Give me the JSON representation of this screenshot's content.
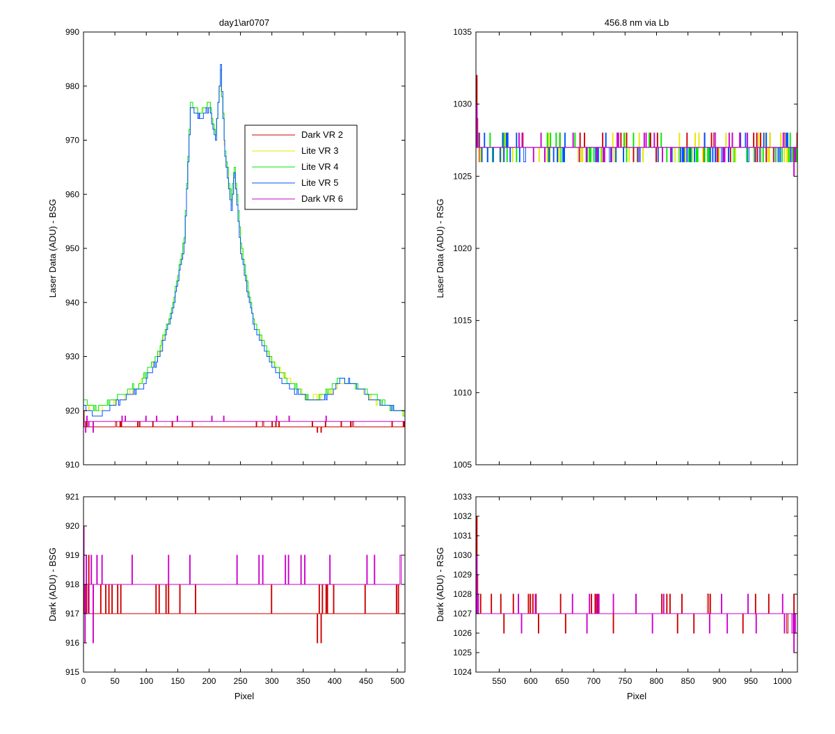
{
  "figure": {
    "background": "#ffffff",
    "xlabel": "Pixel"
  },
  "legend": {
    "placement": "inside top-left panel, upper-right area",
    "entries": [
      {
        "label": "Dark VR 2",
        "color": "#cc0000"
      },
      {
        "label": "Lite VR 3",
        "color": "#e6e600"
      },
      {
        "label": "Lite VR 4",
        "color": "#00e600"
      },
      {
        "label": "Lite VR 5",
        "color": "#0050ff"
      },
      {
        "label": "Dark VR 6",
        "color": "#cc00cc"
      }
    ]
  },
  "chart_data": [
    {
      "id": "bsg_laser",
      "type": "line",
      "title": "day1\\ar0707",
      "xlabel": "",
      "ylabel": "Laser Data (ADU) - BSG",
      "xlim": [
        0,
        512
      ],
      "ylim": [
        910,
        990
      ],
      "xticks": [
        0,
        50,
        100,
        150,
        200,
        250,
        300,
        350,
        400,
        450,
        500
      ],
      "xtick_labels_shown": false,
      "yticks": [
        910,
        920,
        930,
        940,
        950,
        960,
        970,
        980,
        990
      ],
      "grid": false,
      "series": [
        {
          "name": "Dark VR 2",
          "color": "#cc0000",
          "baseline": 917,
          "x": [
            0,
            5,
            10,
            15,
            20,
            370,
            372,
            375,
            378,
            380,
            383,
            385,
            512
          ],
          "y": [
            920,
            918,
            917,
            917,
            917,
            917,
            916,
            917,
            916,
            917,
            917,
            918,
            918
          ]
        },
        {
          "name": "Lite VR 3",
          "color": "#e6e600",
          "x": [
            0,
            20,
            60,
            90,
            120,
            140,
            160,
            170,
            185,
            200,
            210,
            218,
            225,
            235,
            240,
            250,
            270,
            300,
            330,
            360,
            380,
            400,
            410,
            425,
            440,
            460,
            480,
            500,
            512
          ],
          "y": [
            921,
            920,
            922,
            925,
            931,
            938,
            951,
            976,
            975,
            977,
            970,
            983,
            967,
            958,
            964,
            950,
            937,
            929,
            925,
            922,
            923,
            924,
            925,
            925,
            924,
            922,
            921,
            920,
            919
          ]
        },
        {
          "name": "Lite VR 4",
          "color": "#00e600",
          "x": [
            0,
            20,
            60,
            90,
            120,
            140,
            160,
            170,
            185,
            200,
            210,
            218,
            225,
            235,
            240,
            250,
            270,
            300,
            330,
            360,
            380,
            400,
            410,
            425,
            440,
            460,
            480,
            500,
            512
          ],
          "y": [
            922,
            920,
            923,
            925,
            931,
            939,
            952,
            977,
            975,
            977,
            971,
            983,
            968,
            959,
            965,
            951,
            937,
            929,
            925,
            922,
            923,
            925,
            926,
            925,
            924,
            923,
            921,
            920,
            919
          ]
        },
        {
          "name": "Lite VR 5",
          "color": "#0050ff",
          "x": [
            0,
            20,
            60,
            90,
            120,
            140,
            160,
            170,
            185,
            200,
            210,
            218,
            225,
            235,
            240,
            250,
            270,
            300,
            330,
            360,
            380,
            400,
            410,
            425,
            440,
            460,
            480,
            500,
            512
          ],
          "y": [
            921,
            919,
            922,
            924,
            930,
            938,
            951,
            976,
            974,
            976,
            970,
            984,
            967,
            957,
            964,
            949,
            936,
            928,
            924,
            922,
            922,
            924,
            926,
            925,
            924,
            922,
            921,
            920,
            920
          ]
        },
        {
          "name": "Dark VR 6",
          "color": "#cc00cc",
          "baseline": 918,
          "x": [
            0,
            3,
            5,
            8,
            12,
            15,
            20,
            512
          ],
          "y": [
            918,
            916,
            919,
            917,
            918,
            916,
            918,
            918
          ]
        }
      ]
    },
    {
      "id": "rsg_laser",
      "type": "line",
      "title": "456.8 nm via Lb",
      "xlabel": "",
      "ylabel": "Laser Data (ADU) - RSG",
      "xlim": [
        513,
        1024
      ],
      "ylim": [
        1005,
        1035
      ],
      "xticks": [
        550,
        600,
        650,
        700,
        750,
        800,
        850,
        900,
        950,
        1000
      ],
      "xtick_labels_shown": false,
      "yticks": [
        1005,
        1010,
        1015,
        1020,
        1025,
        1030,
        1035
      ],
      "grid": false,
      "series": [
        {
          "name": "Dark VR 2",
          "color": "#cc0000",
          "baseline": 1027,
          "x": [
            513,
            514,
            515,
            517,
            520,
            1024
          ],
          "y": [
            1027,
            1032,
            1029,
            1027,
            1027,
            1027
          ]
        },
        {
          "name": "Lite VR 3",
          "color": "#e6e600",
          "baseline": 1027,
          "x": [
            513,
            1024
          ],
          "y": [
            1027,
            1027
          ]
        },
        {
          "name": "Lite VR 4",
          "color": "#00e600",
          "baseline": 1027,
          "x": [
            513,
            1024
          ],
          "y": [
            1027,
            1027
          ]
        },
        {
          "name": "Lite VR 5",
          "color": "#0050ff",
          "baseline": 1027,
          "x": [
            513,
            1024
          ],
          "y": [
            1027,
            1027
          ]
        },
        {
          "name": "Dark VR 6",
          "color": "#cc00cc",
          "baseline": 1027,
          "x": [
            513,
            514,
            516,
            518,
            1015,
            1018,
            1020,
            1024
          ],
          "y": [
            1027,
            1030,
            1027,
            1028,
            1027,
            1025,
            1026,
            1027
          ]
        }
      ]
    },
    {
      "id": "bsg_dark",
      "type": "line",
      "title": "",
      "xlabel": "Pixel",
      "ylabel": "Dark (ADU) - BSG",
      "xlim": [
        0,
        512
      ],
      "ylim": [
        915,
        921
      ],
      "xticks": [
        0,
        50,
        100,
        150,
        200,
        250,
        300,
        350,
        400,
        450,
        500
      ],
      "yticks": [
        915,
        916,
        917,
        918,
        919,
        920,
        921
      ],
      "grid": false,
      "series": [
        {
          "name": "Dark VR 2",
          "color": "#cc0000",
          "baseline": 917,
          "x": [
            0,
            2,
            4,
            6,
            8,
            12,
            15,
            20,
            370,
            372,
            375,
            378,
            380,
            383,
            386,
            512
          ],
          "y": [
            920,
            917,
            918,
            917,
            919,
            917,
            918,
            917,
            917,
            916,
            918,
            916,
            918,
            917,
            918,
            918
          ]
        },
        {
          "name": "Dark VR 6",
          "color": "#cc00cc",
          "baseline": 918,
          "x": [
            0,
            2,
            4,
            7,
            10,
            12,
            15,
            18,
            22,
            512
          ],
          "y": [
            920,
            916,
            919,
            917,
            918,
            919,
            916,
            918,
            918,
            918
          ]
        }
      ]
    },
    {
      "id": "rsg_dark",
      "type": "line",
      "title": "",
      "xlabel": "Pixel",
      "ylabel": "Dark (ADU) - RSG",
      "xlim": [
        513,
        1024
      ],
      "ylim": [
        1024,
        1033
      ],
      "xticks": [
        550,
        600,
        650,
        700,
        750,
        800,
        850,
        900,
        950,
        1000
      ],
      "yticks": [
        1024,
        1025,
        1026,
        1027,
        1028,
        1029,
        1030,
        1031,
        1032,
        1033
      ],
      "grid": false,
      "series": [
        {
          "name": "Dark VR 2",
          "color": "#cc0000",
          "baseline": 1027,
          "x": [
            513,
            514,
            515,
            516,
            518,
            1016,
            1018,
            1024
          ],
          "y": [
            1027,
            1032,
            1029,
            1028,
            1027,
            1027,
            1028,
            1028
          ]
        },
        {
          "name": "Dark VR 6",
          "color": "#cc00cc",
          "baseline": 1027,
          "x": [
            513,
            514,
            516,
            518,
            1012,
            1015,
            1018,
            1020,
            1024
          ],
          "y": [
            1027,
            1030,
            1028,
            1027,
            1027,
            1026,
            1025,
            1026,
            1026
          ]
        }
      ]
    }
  ]
}
